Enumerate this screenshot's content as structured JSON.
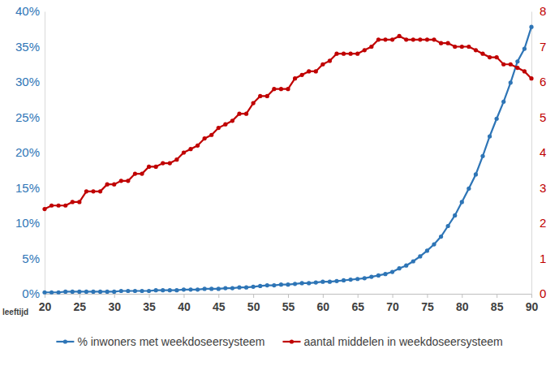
{
  "chart_data": {
    "type": "line",
    "x_label": "leeftijd",
    "x": [
      20,
      21,
      22,
      23,
      24,
      25,
      26,
      27,
      28,
      29,
      30,
      31,
      32,
      33,
      34,
      35,
      36,
      37,
      38,
      39,
      40,
      41,
      42,
      43,
      44,
      45,
      46,
      47,
      48,
      49,
      50,
      51,
      52,
      53,
      54,
      55,
      56,
      57,
      58,
      59,
      60,
      61,
      62,
      63,
      64,
      65,
      66,
      67,
      68,
      69,
      70,
      71,
      72,
      73,
      74,
      75,
      76,
      77,
      78,
      79,
      80,
      81,
      82,
      83,
      84,
      85,
      86,
      87,
      88,
      89,
      90
    ],
    "xlim": [
      20,
      90
    ],
    "xticks": [
      20,
      25,
      30,
      35,
      40,
      45,
      50,
      55,
      60,
      65,
      70,
      75,
      80,
      85,
      90
    ],
    "ylim": [
      0,
      40
    ],
    "yticks": [
      {
        "value": 0,
        "label": "0%"
      },
      {
        "value": 5,
        "label": "5%"
      },
      {
        "value": 10,
        "label": "10%"
      },
      {
        "value": 15,
        "label": "15%"
      },
      {
        "value": 20,
        "label": "20%"
      },
      {
        "value": 25,
        "label": "25%"
      },
      {
        "value": 30,
        "label": "30%"
      },
      {
        "value": 35,
        "label": "35%"
      },
      {
        "value": 40,
        "label": "40%"
      }
    ],
    "y2lim": [
      0,
      8
    ],
    "y2ticks": [
      0,
      1,
      2,
      3,
      4,
      5,
      6,
      7,
      8
    ],
    "grid": false,
    "legend": "bottom",
    "marker": "circle",
    "series": [
      {
        "name": "% inwoners met weekdoseersysteem",
        "color": "#2e75b6",
        "values": [
          0.2,
          0.2,
          0.2,
          0.3,
          0.3,
          0.3,
          0.3,
          0.3,
          0.3,
          0.3,
          0.3,
          0.4,
          0.4,
          0.4,
          0.4,
          0.4,
          0.5,
          0.5,
          0.5,
          0.5,
          0.6,
          0.6,
          0.6,
          0.7,
          0.7,
          0.7,
          0.8,
          0.8,
          0.9,
          0.9,
          1.0,
          1.1,
          1.2,
          1.2,
          1.3,
          1.3,
          1.4,
          1.5,
          1.5,
          1.6,
          1.7,
          1.7,
          1.8,
          1.9,
          2.0,
          2.1,
          2.2,
          2.4,
          2.6,
          2.8,
          3.1,
          3.6,
          4.0,
          4.6,
          5.3,
          6.1,
          7.0,
          8.1,
          9.6,
          11.1,
          13.0,
          14.9,
          16.9,
          19.5,
          22.3,
          24.8,
          27.2,
          29.9,
          32.9,
          34.7,
          37.8
        ]
      },
      {
        "name": "aantal middelen in weekdoseersysteem",
        "color": "#c00000",
        "axis": "y2",
        "values": [
          2.4,
          2.5,
          2.5,
          2.5,
          2.6,
          2.6,
          2.9,
          2.9,
          2.9,
          3.1,
          3.1,
          3.2,
          3.2,
          3.4,
          3.4,
          3.6,
          3.6,
          3.7,
          3.7,
          3.8,
          4.0,
          4.1,
          4.2,
          4.4,
          4.5,
          4.7,
          4.8,
          4.9,
          5.1,
          5.1,
          5.4,
          5.6,
          5.6,
          5.8,
          5.8,
          5.8,
          6.1,
          6.2,
          6.3,
          6.3,
          6.5,
          6.6,
          6.8,
          6.8,
          6.8,
          6.8,
          6.9,
          7.0,
          7.2,
          7.2,
          7.2,
          7.3,
          7.2,
          7.2,
          7.2,
          7.2,
          7.2,
          7.1,
          7.1,
          7.0,
          7.0,
          7.0,
          6.9,
          6.8,
          6.7,
          6.7,
          6.5,
          6.5,
          6.4,
          6.3,
          6.1
        ]
      }
    ]
  }
}
